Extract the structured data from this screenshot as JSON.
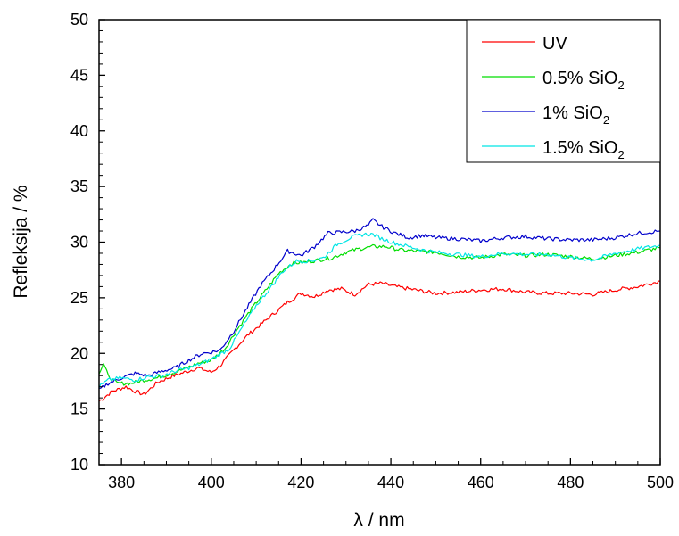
{
  "chart_data": {
    "type": "line",
    "title": "",
    "xlabel": "λ / nm",
    "ylabel": "Refleksija / %",
    "xlim": [
      375,
      500
    ],
    "ylim": [
      10,
      50
    ],
    "x_ticks": [
      "380",
      "400",
      "420",
      "440",
      "460",
      "480",
      "500"
    ],
    "y_ticks": [
      "10",
      "15",
      "20",
      "25",
      "30",
      "35",
      "40",
      "45",
      "50"
    ],
    "legend_position": "top-right",
    "grid": false,
    "series": [
      {
        "name": "UV",
        "legend_main": "UV",
        "legend_sub": "",
        "color": "#ff0000",
        "x": [
          375,
          378,
          381,
          383,
          385,
          388,
          391,
          394,
          397,
          400,
          402,
          405,
          408,
          411,
          414,
          417,
          420,
          423,
          426,
          429,
          432,
          435,
          438,
          441,
          444,
          447,
          450,
          455,
          460,
          465,
          470,
          475,
          480,
          485,
          490,
          495,
          500
        ],
        "y": [
          15.7,
          16.6,
          17.0,
          16.6,
          16.3,
          17.4,
          17.9,
          18.3,
          18.7,
          18.3,
          18.9,
          20.3,
          21.6,
          22.6,
          23.6,
          24.6,
          25.4,
          25.1,
          25.7,
          25.8,
          25.3,
          26.2,
          26.3,
          26.0,
          25.8,
          25.6,
          25.4,
          25.5,
          25.7,
          25.8,
          25.5,
          25.4,
          25.4,
          25.3,
          25.7,
          26.0,
          26.5
        ]
      },
      {
        "name": "0.5% SiO2",
        "legend_main": "0.5% SiO",
        "legend_sub": "2",
        "color": "#00dd00",
        "x": [
          375,
          376,
          377,
          379,
          382,
          385,
          388,
          391,
          394,
          397,
          400,
          403,
          406,
          409,
          412,
          415,
          418,
          421,
          424,
          427,
          430,
          433,
          436,
          439,
          442,
          445,
          450,
          455,
          460,
          465,
          470,
          475,
          480,
          485,
          490,
          495,
          500
        ],
        "y": [
          18.3,
          19.1,
          18.0,
          17.3,
          17.3,
          17.6,
          17.8,
          18.2,
          18.6,
          19.1,
          19.4,
          20.4,
          22.3,
          24.0,
          25.6,
          27.2,
          28.1,
          28.2,
          28.4,
          28.6,
          29.1,
          29.4,
          29.6,
          29.6,
          29.3,
          29.2,
          29.1,
          28.7,
          28.6,
          28.9,
          28.8,
          28.9,
          28.7,
          28.5,
          28.8,
          29.1,
          29.5
        ]
      },
      {
        "name": "1% SiO2",
        "legend_main": "1% SiO",
        "legend_sub": "2",
        "color": "#0000cc",
        "x": [
          375,
          377,
          380,
          383,
          386,
          389,
          392,
          395,
          398,
          400,
          402,
          405,
          408,
          411,
          414,
          417,
          420,
          423,
          426,
          429,
          432,
          435,
          436,
          438,
          441,
          444,
          447,
          450,
          455,
          460,
          465,
          470,
          475,
          480,
          485,
          490,
          495,
          500
        ],
        "y": [
          16.7,
          17.3,
          17.8,
          18.2,
          18.0,
          18.4,
          18.7,
          19.4,
          20.0,
          20.1,
          20.3,
          22.0,
          24.1,
          26.1,
          27.6,
          29.2,
          28.8,
          29.6,
          30.8,
          30.9,
          31.0,
          31.5,
          32.0,
          31.4,
          30.8,
          30.4,
          30.6,
          30.4,
          30.3,
          30.1,
          30.4,
          30.5,
          30.3,
          30.2,
          30.2,
          30.4,
          30.8,
          31.0
        ]
      },
      {
        "name": "1.5% SiO2",
        "legend_main": "1.5% SiO",
        "legend_sub": "2",
        "color": "#00e5e5",
        "x": [
          375,
          377,
          380,
          383,
          386,
          389,
          392,
          395,
          398,
          401,
          404,
          407,
          410,
          413,
          416,
          419,
          422,
          425,
          428,
          431,
          434,
          436,
          438,
          441,
          444,
          447,
          450,
          455,
          460,
          465,
          470,
          475,
          480,
          485,
          490,
          495,
          500
        ],
        "y": [
          17.0,
          17.6,
          17.8,
          17.6,
          17.9,
          18.0,
          18.4,
          18.7,
          19.1,
          19.7,
          20.4,
          22.4,
          24.3,
          25.8,
          27.4,
          28.3,
          28.3,
          28.6,
          29.8,
          30.4,
          30.7,
          30.7,
          30.3,
          29.9,
          29.6,
          29.3,
          29.1,
          28.9,
          28.7,
          29.0,
          28.9,
          28.9,
          28.6,
          28.4,
          29.0,
          29.4,
          29.7
        ]
      }
    ]
  }
}
